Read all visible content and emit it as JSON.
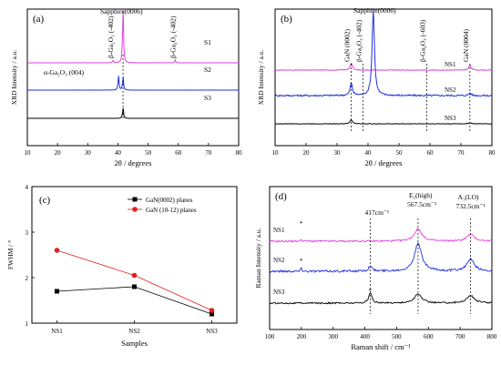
{
  "chart_data": [
    {
      "panel_label": "(a)",
      "type": "line",
      "xlabel": "2θ / degrees",
      "ylabel": "XRD Intensity / a.u.",
      "xlim": [
        10,
        80
      ],
      "x_ticks": [
        10,
        20,
        30,
        40,
        50,
        60,
        70,
        80
      ],
      "annotations": [
        "β-Ga₂O₃ (-402)",
        "Sapphire(0006)",
        "β-Ga₂O₃ (-402)",
        "α-Ga₂O₃ (004)"
      ],
      "series": [
        {
          "name": "S1",
          "color": "#e040e0",
          "peaks": [
            {
              "x": 41.7,
              "h": 1.0
            },
            {
              "x": 38.4,
              "h": 0.05
            },
            {
              "x": 59.0,
              "h": 0.05
            }
          ]
        },
        {
          "name": "S2",
          "color": "#2030e0",
          "peaks": [
            {
              "x": 40.2,
              "h": 0.55
            },
            {
              "x": 41.7,
              "h": 0.5
            }
          ]
        },
        {
          "name": "S3",
          "color": "#000000",
          "peaks": [
            {
              "x": 41.7,
              "h": 0.6
            }
          ]
        }
      ],
      "dashed_x": [
        41.7
      ]
    },
    {
      "panel_label": "(b)",
      "type": "line",
      "xlabel": "2θ / degrees",
      "ylabel": "XRD Intensity / a.u.",
      "xlim": [
        10,
        80
      ],
      "x_ticks": [
        10,
        20,
        30,
        40,
        50,
        60,
        70,
        80
      ],
      "annotations": [
        "GaN (0002)",
        "β-Ga₂O₃ (-402)",
        "Sapphire(0006)",
        "β-Ga₂O₃ (-603)",
        "GaN (0004)"
      ],
      "series": [
        {
          "name": "NS1",
          "color": "#e040e0",
          "peaks": [
            {
              "x": 34.6,
              "h": 0.22
            },
            {
              "x": 72.9,
              "h": 0.15
            }
          ]
        },
        {
          "name": "NS2",
          "color": "#2030e0",
          "peaks": [
            {
              "x": 34.6,
              "h": 0.14
            },
            {
              "x": 41.7,
              "h": 1.0
            },
            {
              "x": 72.9,
              "h": 0.03
            }
          ]
        },
        {
          "name": "NS3",
          "color": "#000000",
          "peaks": [
            {
              "x": 34.6,
              "h": 0.15
            },
            {
              "x": 72.9,
              "h": 0.04
            }
          ]
        }
      ],
      "dashed_x": [
        34.6,
        38.4,
        59.0,
        72.9
      ]
    },
    {
      "panel_label": "(c)",
      "type": "line",
      "xlabel": "Samples",
      "ylabel": "FWHM / °",
      "categories": [
        "NS1",
        "NS2",
        "NS3"
      ],
      "ylim": [
        1,
        4
      ],
      "y_ticks": [
        1,
        2,
        3,
        4
      ],
      "legend_position": "top-right",
      "series": [
        {
          "name": "GaN(0002) planes",
          "color": "#000000",
          "marker": "square",
          "values": [
            1.7,
            1.8,
            1.2
          ]
        },
        {
          "name": "GaN (10-12) planes",
          "color": "#e02020",
          "marker": "circle",
          "values": [
            2.6,
            2.05,
            1.28
          ]
        }
      ]
    },
    {
      "panel_label": "(d)",
      "type": "line",
      "xlabel": "Raman shift / cm⁻¹",
      "ylabel": "Raman Intensity / a.u.",
      "xlim": [
        100,
        800
      ],
      "x_ticks": [
        100,
        200,
        300,
        400,
        500,
        600,
        700,
        800
      ],
      "annotations": [
        "417cm⁻¹",
        "E₂(high)",
        "567.5cm⁻¹",
        "A₁(LO)",
        "732.5cm⁻¹",
        "*",
        "*",
        "*"
      ],
      "series": [
        {
          "name": "NS1",
          "color": "#e040e0",
          "peaks": [
            {
              "x": 200,
              "h": 0.08
            },
            {
              "x": 567.5,
              "h": 0.45
            },
            {
              "x": 732.5,
              "h": 0.25
            }
          ]
        },
        {
          "name": "NS2",
          "color": "#2030e0",
          "peaks": [
            {
              "x": 200,
              "h": 0.1
            },
            {
              "x": 417,
              "h": 0.15
            },
            {
              "x": 567.5,
              "h": 0.75
            },
            {
              "x": 732.5,
              "h": 0.32
            }
          ]
        },
        {
          "name": "NS3",
          "color": "#000000",
          "peaks": [
            {
              "x": 417,
              "h": 0.4
            },
            {
              "x": 567.5,
              "h": 0.35
            },
            {
              "x": 732.5,
              "h": 0.3
            }
          ]
        }
      ],
      "dashed_x": [
        417,
        567.5,
        732.5
      ]
    }
  ]
}
